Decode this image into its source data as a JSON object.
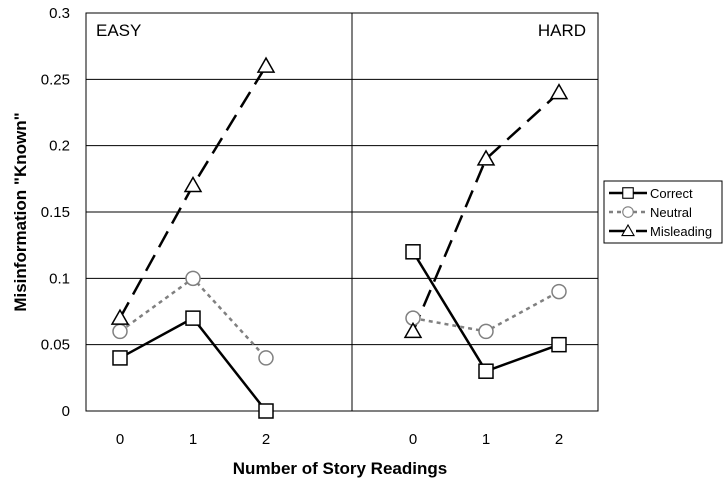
{
  "chart_data": {
    "type": "line",
    "ylabel": "Misinformation \"Known\"",
    "xlabel": "Number of Story Readings",
    "ylim": [
      0,
      0.3
    ],
    "yticks": [
      "0",
      "0.05",
      "0.1",
      "0.15",
      "0.2",
      "0.25",
      "0.3"
    ],
    "grid": true,
    "legend_position": "right",
    "panels": [
      {
        "label": "EASY",
        "categories": [
          "0",
          "1",
          "2"
        ],
        "series": [
          {
            "name": "Correct",
            "values": [
              0.04,
              0.07,
              0.0
            ]
          },
          {
            "name": "Neutral",
            "values": [
              0.06,
              0.1,
              0.04
            ]
          },
          {
            "name": "Misleading",
            "values": [
              0.07,
              0.17,
              0.26
            ]
          }
        ]
      },
      {
        "label": "HARD",
        "categories": [
          "0",
          "1",
          "2"
        ],
        "series": [
          {
            "name": "Correct",
            "values": [
              0.12,
              0.03,
              0.05
            ]
          },
          {
            "name": "Neutral",
            "values": [
              0.07,
              0.06,
              0.09
            ]
          },
          {
            "name": "Misleading",
            "values": [
              0.06,
              0.19,
              0.24
            ]
          }
        ]
      }
    ],
    "series_styles": [
      {
        "name": "Correct",
        "color": "#000000",
        "dash": "solid",
        "marker": "square"
      },
      {
        "name": "Neutral",
        "color": "#808080",
        "dash": "dotted",
        "marker": "circle"
      },
      {
        "name": "Misleading",
        "color": "#000000",
        "dash": "dashed",
        "marker": "triangle"
      }
    ]
  }
}
